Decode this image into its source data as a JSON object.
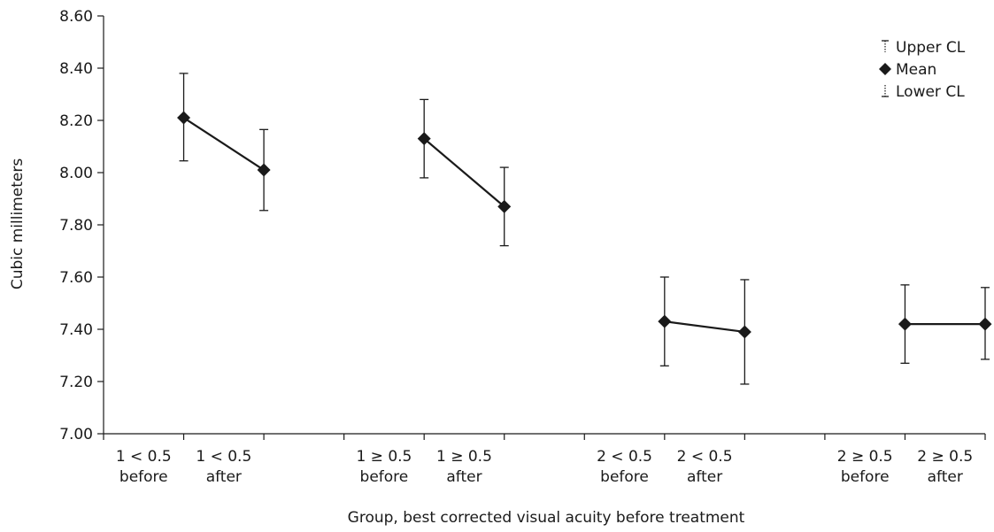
{
  "chart_data": {
    "type": "scatter",
    "title": "",
    "xlabel": "Group, best corrected visual acuity before treatment",
    "ylabel": "Cubic millimeters",
    "ylim": [
      7.0,
      8.6
    ],
    "yticks": [
      "7.00",
      "7.20",
      "7.40",
      "7.60",
      "7.80",
      "8.00",
      "8.20",
      "8.40",
      "8.60"
    ],
    "grid": false,
    "legend_position": "top-right",
    "legend": [
      "Upper CL",
      "Mean",
      "Lower CL"
    ],
    "categories": [
      {
        "line1": "1 < 0.5",
        "line2": "before"
      },
      {
        "line1": "1 < 0.5",
        "line2": "after"
      },
      {
        "line1": "1 ≥ 0.5",
        "line2": "before"
      },
      {
        "line1": "1 ≥ 0.5",
        "line2": "after"
      },
      {
        "line1": "2 < 0.5",
        "line2": "before"
      },
      {
        "line1": "2 < 0.5",
        "line2": "after"
      },
      {
        "line1": "2 ≥ 0.5",
        "line2": "before"
      },
      {
        "line1": "2 ≥ 0.5",
        "line2": "after"
      }
    ],
    "series": [
      {
        "name": "Mean",
        "values": [
          8.21,
          8.01,
          8.13,
          7.87,
          7.43,
          7.39,
          7.42,
          7.42
        ]
      },
      {
        "name": "Upper CL",
        "values": [
          8.38,
          8.165,
          8.28,
          8.02,
          7.6,
          7.59,
          7.57,
          7.56
        ]
      },
      {
        "name": "Lower CL",
        "values": [
          8.045,
          7.855,
          7.98,
          7.72,
          7.26,
          7.19,
          7.27,
          7.285
        ]
      }
    ],
    "connected_pairs": [
      [
        0,
        1
      ],
      [
        2,
        3
      ],
      [
        4,
        5
      ],
      [
        6,
        7
      ]
    ],
    "mean_color": "#1a1a1a"
  }
}
